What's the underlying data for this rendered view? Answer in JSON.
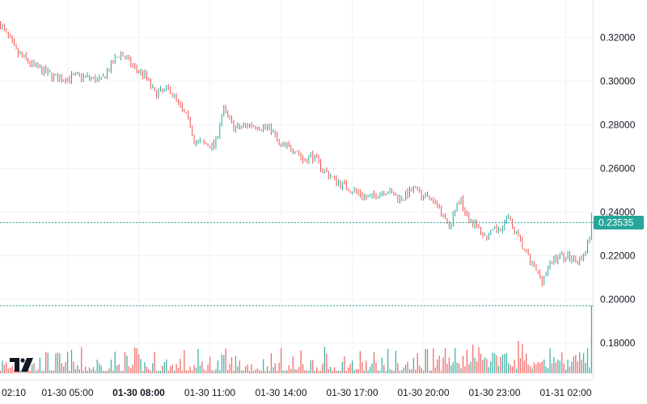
{
  "chart_data": {
    "type": "candlestick",
    "title": "",
    "interval_minutes": 5,
    "start_time": "01-30 02:10",
    "y_ticks": [
      "0.32000",
      "0.30000",
      "0.28000",
      "0.26000",
      "0.24000",
      "0.22000",
      "0.20000",
      "0.18000"
    ],
    "y_tick_values": [
      0.32,
      0.3,
      0.28,
      0.26,
      0.24,
      0.22,
      0.2,
      0.18
    ],
    "ylim": [
      0.1655,
      0.3335
    ],
    "x_ticks": [
      {
        "label": "02:10",
        "minutes": 0,
        "bold": false
      },
      {
        "label": "01-30 05:00",
        "minutes": 170,
        "bold": false
      },
      {
        "label": "01-30 08:00",
        "minutes": 350,
        "bold": true
      },
      {
        "label": "01-30 11:00",
        "minutes": 530,
        "bold": false
      },
      {
        "label": "01-30 14:00",
        "minutes": 710,
        "bold": false
      },
      {
        "label": "01-30 17:00",
        "minutes": 890,
        "bold": false
      },
      {
        "label": "01-30 20:00",
        "minutes": 1070,
        "bold": false
      },
      {
        "label": "01-30 23:00",
        "minutes": 1250,
        "bold": false
      },
      {
        "label": "01-31 02:00",
        "minutes": 1430,
        "bold": false
      }
    ],
    "xlim_minutes": [
      0,
      1500
    ],
    "close_path": {
      "minutes": [
        0,
        41,
        82,
        143,
        205,
        256,
        276,
        303,
        338,
        368,
        389,
        430,
        450,
        481,
        491,
        542,
        563,
        593,
        634,
        685,
        706,
        747,
        767,
        787,
        818,
        849,
        890,
        931,
        972,
        1013,
        1043,
        1084,
        1115,
        1135,
        1162,
        1186,
        1227,
        1258,
        1285,
        1309,
        1340,
        1370,
        1401,
        1432,
        1469,
        1489,
        1499
      ],
      "prices": [
        0.326,
        0.313,
        0.307,
        0.301,
        0.302,
        0.3,
        0.306,
        0.313,
        0.306,
        0.302,
        0.294,
        0.296,
        0.289,
        0.28,
        0.272,
        0.27,
        0.287,
        0.278,
        0.28,
        0.278,
        0.27,
        0.269,
        0.263,
        0.266,
        0.259,
        0.254,
        0.25,
        0.246,
        0.25,
        0.246,
        0.25,
        0.246,
        0.241,
        0.233,
        0.246,
        0.237,
        0.228,
        0.232,
        0.237,
        0.228,
        0.217,
        0.209,
        0.219,
        0.22,
        0.217,
        0.226,
        0.23535
      ]
    },
    "last_price": "0.23535",
    "colors": {
      "up": "#26a69a",
      "down": "#ef5350",
      "grid": "#f0f3fa",
      "badge": "#26a69a",
      "text": "#131722"
    }
  }
}
